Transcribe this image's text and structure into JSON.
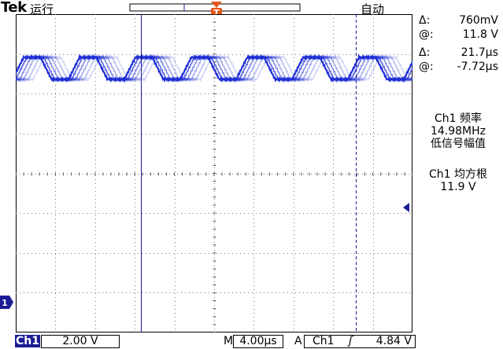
{
  "header": {
    "brand": "Tek",
    "run_state": "运行",
    "acq_mode": "自动",
    "trigger_marker": "T"
  },
  "cursors": {
    "delta_v_symbol": "Δ:",
    "delta_v_value": "760mV",
    "at_v_symbol": "@:",
    "at_v_value": "11.8 V",
    "delta_t_symbol": "Δ:",
    "delta_t_value": "21.7µs",
    "at_t_symbol": "@:",
    "at_t_value": "-7.72µs"
  },
  "measurements": [
    {
      "line1": "Ch1 频率",
      "line2": "14.98MHz",
      "line3": "低信号幅值"
    },
    {
      "line1": "Ch1 均方根",
      "line2": "11.9 V",
      "line3": ""
    }
  ],
  "footer": {
    "channel": "Ch1",
    "volts_per_div": "2.00 V",
    "timebase_label": "M",
    "timebase": "4.00µs",
    "trigger_mode_label": "A",
    "trigger_channel": "Ch1",
    "trigger_slope": "ʃ",
    "trigger_level": "4.84 V"
  },
  "channel_marker": "1",
  "colors": {
    "trace": "#1f2fd6",
    "trigger": "#e8561a",
    "cursor": "#1c1c96",
    "channel_tag": "#1c1c96"
  }
}
